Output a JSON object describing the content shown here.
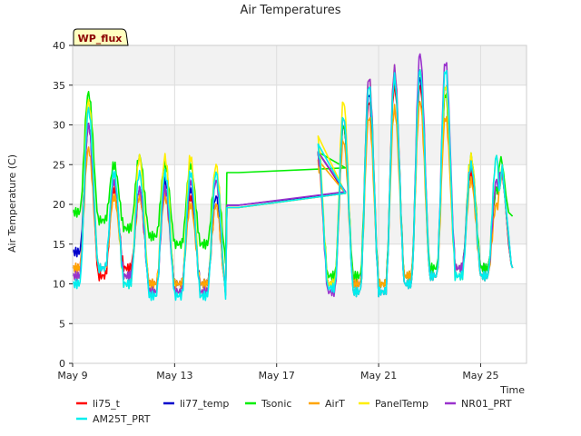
{
  "chart_data": {
    "type": "line",
    "title": "Air Temperatures",
    "xlabel": "Time",
    "ylabel": "Air Temperature (C)",
    "badge": "WP_flux",
    "xlim": [
      0,
      17.8
    ],
    "ylim": [
      0,
      40
    ],
    "yticks": [
      0,
      5,
      10,
      15,
      20,
      25,
      30,
      35,
      40
    ],
    "xticks": [
      {
        "day": 0,
        "label": "May 9"
      },
      {
        "day": 4,
        "label": "May 13"
      },
      {
        "day": 8,
        "label": "May 17"
      },
      {
        "day": 12,
        "label": "May 21"
      },
      {
        "day": 16,
        "label": "May 25"
      }
    ],
    "grid": true,
    "legend_position": "bottom",
    "gap": [
      6.0,
      10.7
    ],
    "series": [
      {
        "name": "li75_t",
        "color": "#ff0000",
        "days_before": [
          [
            12,
            30
          ],
          [
            11,
            22
          ],
          [
            12,
            21
          ],
          [
            10,
            22
          ],
          [
            10,
            21
          ],
          [
            10,
            20
          ],
          [
            9,
            24
          ]
        ],
        "days_after": [
          [
            12,
            26
          ],
          [
            10,
            30
          ],
          [
            10,
            33
          ],
          [
            10,
            35
          ],
          [
            11,
            35
          ],
          [
            11,
            34
          ],
          [
            12,
            24
          ],
          [
            11,
            22
          ],
          [
            11,
            12
          ]
        ],
        "gap_start": 19.6,
        "gap_end": 21.4
      },
      {
        "name": "li77_temp",
        "color": "#0000cc",
        "days_before": [
          [
            14,
            30
          ],
          [
            12,
            23
          ],
          [
            11,
            22
          ],
          [
            9,
            23
          ],
          [
            10,
            22
          ],
          [
            10,
            21
          ],
          [
            9,
            23
          ]
        ],
        "days_after": [
          [
            12,
            26
          ],
          [
            10,
            30
          ],
          [
            10,
            34
          ],
          [
            9,
            36
          ],
          [
            10,
            36
          ],
          [
            11,
            35
          ],
          [
            12,
            25
          ],
          [
            12,
            22
          ],
          [
            12,
            12
          ]
        ],
        "gap_start": 19.9,
        "gap_end": 21.5
      },
      {
        "name": "Tsonic",
        "color": "#00ee00",
        "days_before": [
          [
            19,
            34
          ],
          [
            18,
            25
          ],
          [
            17,
            26
          ],
          [
            16,
            25
          ],
          [
            15,
            25
          ],
          [
            15,
            24
          ],
          [
            13,
            25
          ]
        ],
        "days_after": [
          [
            13,
            26
          ],
          [
            11,
            30
          ],
          [
            11,
            35
          ],
          [
            10,
            36
          ],
          [
            11,
            37
          ],
          [
            12,
            34
          ],
          [
            12,
            26
          ],
          [
            12,
            22
          ],
          [
            12,
            18.5
          ]
        ],
        "gap_start": 24.0,
        "gap_end": 24.6
      },
      {
        "name": "AirT",
        "color": "#ffa500",
        "days_before": [
          [
            12,
            27
          ],
          [
            12,
            21
          ],
          [
            11,
            21
          ],
          [
            10,
            21
          ],
          [
            10,
            20
          ],
          [
            10,
            20
          ],
          [
            9,
            24
          ]
        ],
        "days_after": [
          [
            12,
            25
          ],
          [
            10,
            28
          ],
          [
            10,
            31
          ],
          [
            10,
            32
          ],
          [
            11,
            33
          ],
          [
            11,
            31
          ],
          [
            12,
            23
          ],
          [
            11,
            20
          ],
          [
            11,
            12
          ]
        ],
        "gap_start": 19.6,
        "gap_end": 21.4
      },
      {
        "name": "PanelTemp",
        "color": "#ffee00",
        "days_before": [
          [
            11,
            33
          ],
          [
            12,
            23
          ],
          [
            10,
            26
          ],
          [
            9,
            26
          ],
          [
            9,
            26
          ],
          [
            9,
            25
          ],
          [
            9,
            25
          ]
        ],
        "days_after": [
          [
            11,
            28
          ],
          [
            10,
            33
          ],
          [
            9,
            36
          ],
          [
            9,
            37
          ],
          [
            10,
            37
          ],
          [
            11,
            35
          ],
          [
            11,
            26
          ],
          [
            11,
            26
          ],
          [
            11,
            12
          ]
        ],
        "gap_start": 19.6,
        "gap_end": 21.4
      },
      {
        "name": "NR01_PRT",
        "color": "#9a32cd",
        "days_before": [
          [
            11,
            30
          ],
          [
            12,
            23
          ],
          [
            11,
            22
          ],
          [
            9,
            22
          ],
          [
            9,
            23
          ],
          [
            9,
            23
          ],
          [
            9,
            24
          ]
        ],
        "days_after": [
          [
            11,
            26
          ],
          [
            9,
            31
          ],
          [
            9,
            36
          ],
          [
            9,
            37
          ],
          [
            10,
            39
          ],
          [
            11,
            38
          ],
          [
            12,
            25
          ],
          [
            11,
            23
          ],
          [
            12,
            12
          ]
        ],
        "gap_start": 19.9,
        "gap_end": 21.6
      },
      {
        "name": "AM25T_PRT",
        "color": "#00eeee",
        "days_before": [
          [
            10,
            32
          ],
          [
            12,
            24
          ],
          [
            10,
            24
          ],
          [
            8.5,
            24
          ],
          [
            8.5,
            24
          ],
          [
            8.5,
            24
          ],
          [
            8.5,
            24
          ]
        ],
        "days_after": [
          [
            11,
            27
          ],
          [
            9.5,
            31
          ],
          [
            9,
            35
          ],
          [
            9,
            36
          ],
          [
            10,
            37
          ],
          [
            11,
            37
          ],
          [
            11,
            25
          ],
          [
            11,
            26
          ],
          [
            11.5,
            12
          ]
        ],
        "gap_start": 19.6,
        "gap_end": 21.4
      }
    ]
  }
}
